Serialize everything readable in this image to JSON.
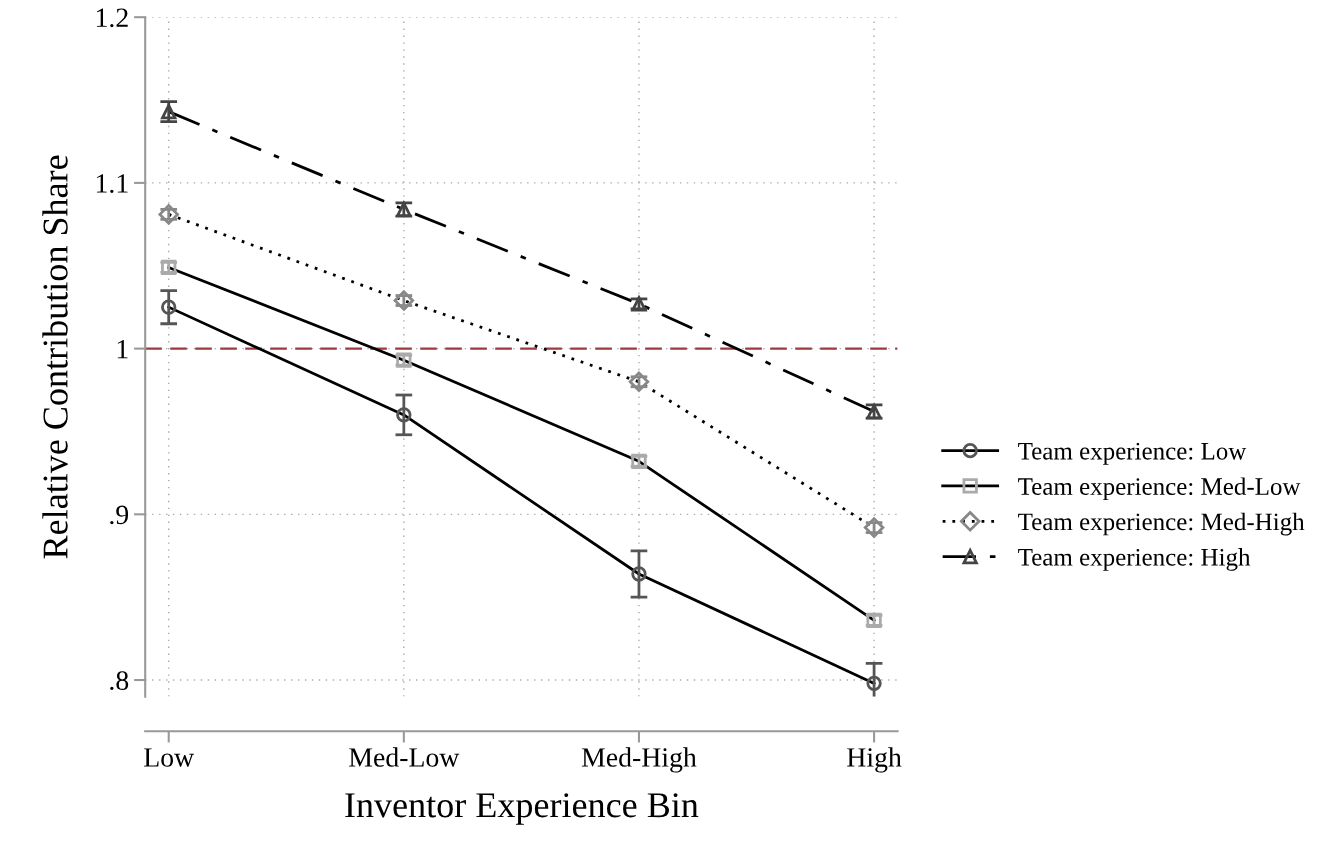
{
  "chart_data": {
    "type": "line",
    "xlabel": "Inventor Experience Bin",
    "ylabel": "Relative Contribution Share",
    "categories": [
      "Low",
      "Med-Low",
      "Med-High",
      "High"
    ],
    "series": [
      {
        "name": "Team experience: Low",
        "color": "#000000",
        "colors": [
          "#555555",
          "#555555",
          "#555555",
          "#555555"
        ],
        "marker": "circle",
        "line_style": "solid",
        "values": [
          1.025,
          0.96,
          0.864,
          0.798
        ],
        "errors": [
          0.01,
          0.012,
          0.014,
          0.012
        ]
      },
      {
        "name": "Team experience: Med-Low",
        "color": "#000000",
        "colors": [
          "#aaaaaa",
          "#aaaaaa",
          "#aaaaaa",
          "#aaaaaa"
        ],
        "marker": "square",
        "line_style": "solid",
        "values": [
          1.049,
          0.993,
          0.932,
          0.836
        ],
        "errors": [
          0.003,
          0.003,
          0.003,
          0.003
        ]
      },
      {
        "name": "Team experience: Med-High",
        "color": "#000000",
        "colors": [
          "#888888",
          "#888888",
          "#888888",
          "#888888"
        ],
        "marker": "diamond",
        "line_style": "dotted",
        "values": [
          1.081,
          1.029,
          0.98,
          0.892
        ],
        "errors": [
          0.003,
          0.003,
          0.003,
          0.003
        ]
      },
      {
        "name": "Team experience: High",
        "color": "#000000",
        "colors": [
          "#444444",
          "#444444",
          "#444444",
          "#444444"
        ],
        "marker": "triangle",
        "line_style": "dashdot",
        "values": [
          1.143,
          1.084,
          1.027,
          0.962
        ],
        "errors": [
          0.006,
          0.004,
          0.003,
          0.004
        ]
      }
    ],
    "ylim": [
      0.79,
      1.2
    ],
    "yticks": [
      {
        "value": 0.8,
        "label": ".8"
      },
      {
        "value": 0.9,
        "label": ".9"
      },
      1,
      1.1,
      1.2
    ],
    "ref_lines": [
      {
        "axis": "y",
        "value": 1,
        "color": "#a0393f",
        "line_style": "dashed"
      }
    ],
    "grid": true,
    "legend": "right"
  }
}
